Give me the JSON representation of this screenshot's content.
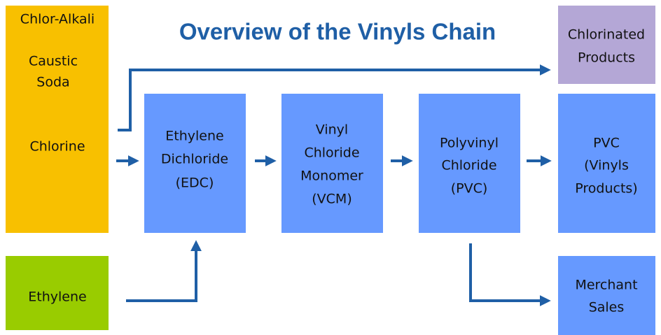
{
  "title": "Overview of the Vinyls Chain",
  "nodes": [
    {
      "lines": [
        "Chlor-Alkali",
        "Caustic",
        "Soda",
        "Chlorine"
      ]
    },
    {
      "lines": [
        "Ethylene"
      ]
    },
    {
      "lines": [
        "Chlorinated",
        "Products"
      ]
    },
    {
      "lines": [
        "Ethylene",
        "Dichloride",
        "(EDC)"
      ]
    },
    {
      "lines": [
        "Vinyl",
        "Chloride",
        "Monomer",
        "(VCM)"
      ]
    },
    {
      "lines": [
        "Polyvinyl",
        "Chloride",
        "(PVC)"
      ]
    },
    {
      "lines": [
        "PVC",
        "(Vinyls",
        "Products)"
      ]
    },
    {
      "lines": [
        "Merchant",
        "Sales"
      ]
    }
  ]
}
